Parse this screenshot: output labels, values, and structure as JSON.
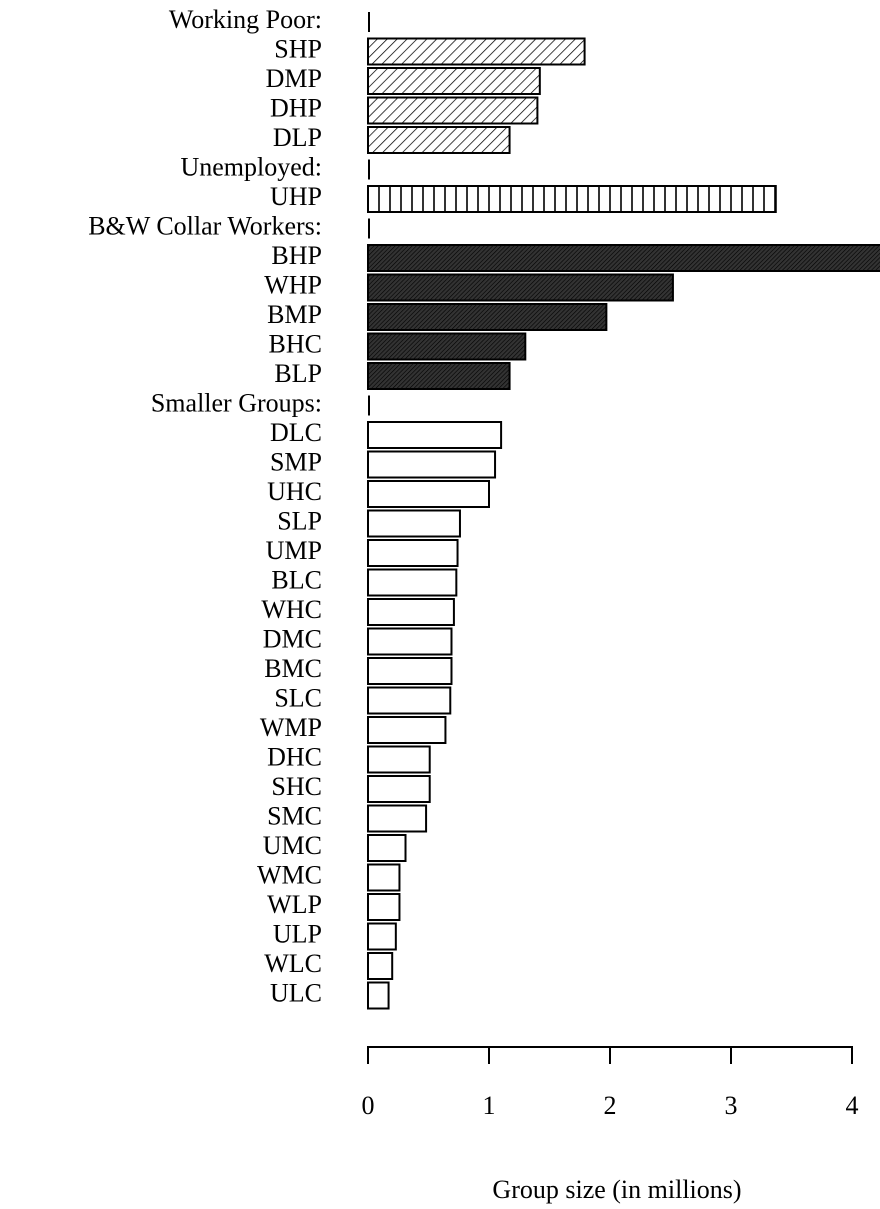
{
  "chart_data": {
    "type": "bar",
    "orientation": "horizontal",
    "xlabel": "Group size (in millions)",
    "xlim": [
      0,
      4
    ],
    "xticks": [
      0,
      1,
      2,
      3,
      4
    ],
    "groups": [
      {
        "name": "Working Poor:",
        "pattern": "hatch",
        "categories": [
          "SHP",
          "DMP",
          "DHP",
          "DLP"
        ],
        "values": [
          1.79,
          1.42,
          1.4,
          1.17
        ]
      },
      {
        "name": "Unemployed:",
        "pattern": "vertical",
        "categories": [
          "UHP"
        ],
        "values": [
          3.37
        ]
      },
      {
        "name": "B&W Collar Workers:",
        "pattern": "dense",
        "categories": [
          "BHP",
          "WHP",
          "BMP",
          "BHC",
          "BLP"
        ],
        "values": [
          4.25,
          2.52,
          1.97,
          1.3,
          1.17
        ]
      },
      {
        "name": "Smaller Groups:",
        "pattern": "none",
        "categories": [
          "DLC",
          "SMP",
          "UHC",
          "SLP",
          "UMP",
          "BLC",
          "WHC",
          "DMC",
          "BMC",
          "SLC",
          "WMP",
          "DHC",
          "SHC",
          "SMC",
          "UMC",
          "WMC",
          "WLP",
          "ULP",
          "WLC",
          "ULC"
        ],
        "values": [
          1.1,
          1.05,
          1.0,
          0.76,
          0.74,
          0.73,
          0.71,
          0.69,
          0.69,
          0.68,
          0.64,
          0.51,
          0.51,
          0.48,
          0.31,
          0.26,
          0.26,
          0.23,
          0.2,
          0.17
        ]
      }
    ]
  }
}
